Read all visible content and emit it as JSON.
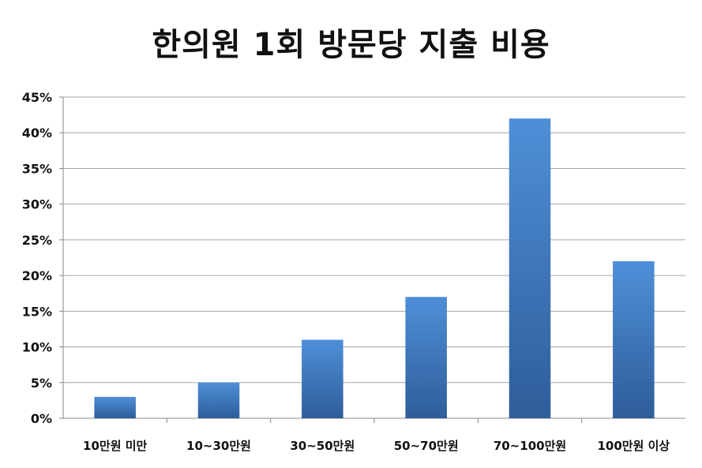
{
  "chart_data": {
    "type": "bar",
    "title": "한의원 1회 방문당 지출 비용",
    "categories": [
      "10만원 미만",
      "10~30만원",
      "30~50만원",
      "50~70만원",
      "70~100만원",
      "100만원 이상"
    ],
    "values": [
      3,
      5,
      11,
      17,
      42,
      22
    ],
    "y_tick_labels": [
      "0%",
      "5%",
      "10%",
      "15%",
      "20%",
      "25%",
      "30%",
      "35%",
      "40%",
      "45%"
    ],
    "ylim": [
      0,
      45
    ],
    "y_unit": "%",
    "grid": true,
    "legend": "none",
    "bar_color_top": "#4f8fd8",
    "bar_color_bottom": "#2e5d9a",
    "grid_color": "#a6a6a6"
  }
}
